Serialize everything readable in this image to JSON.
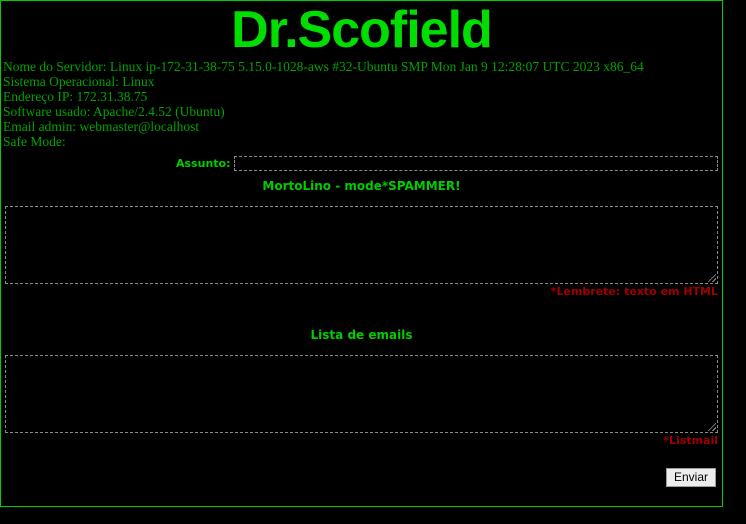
{
  "page": {
    "title": "Dr.Scofield"
  },
  "colors": {
    "background": "#000000",
    "frame_border": "#00cc00",
    "title_green": "#00dd00",
    "info_green": "#00a300",
    "label_green": "#00cc00",
    "note_red": "#a00000",
    "field_border": "#8a8a8a",
    "button_bg": "#ededed"
  },
  "server_info": {
    "lines": [
      "Nome do Servidor: Linux ip-172-31-38-75 5.15.0-1028-aws #32-Ubuntu SMP Mon Jan 9 12:28:07 UTC 2023 x86_64",
      "Sistema Operacional: Linux",
      "Endereço IP: 172.31.38.75",
      "Software usado: Apache/2.4.52 (Ubuntu)",
      "Email admin: webmaster@localhost",
      "Safe Mode:"
    ]
  },
  "form": {
    "subject_label": "Assunto:",
    "subject_value": "",
    "message_heading": "MortoLino - mode*SPAMMER!",
    "message_value": "",
    "message_note": "*Lembrete: texto em HTML",
    "emails_heading": "Lista de emails",
    "emails_value": "",
    "emails_note": "*Listmail",
    "submit_label": "Enviar"
  }
}
